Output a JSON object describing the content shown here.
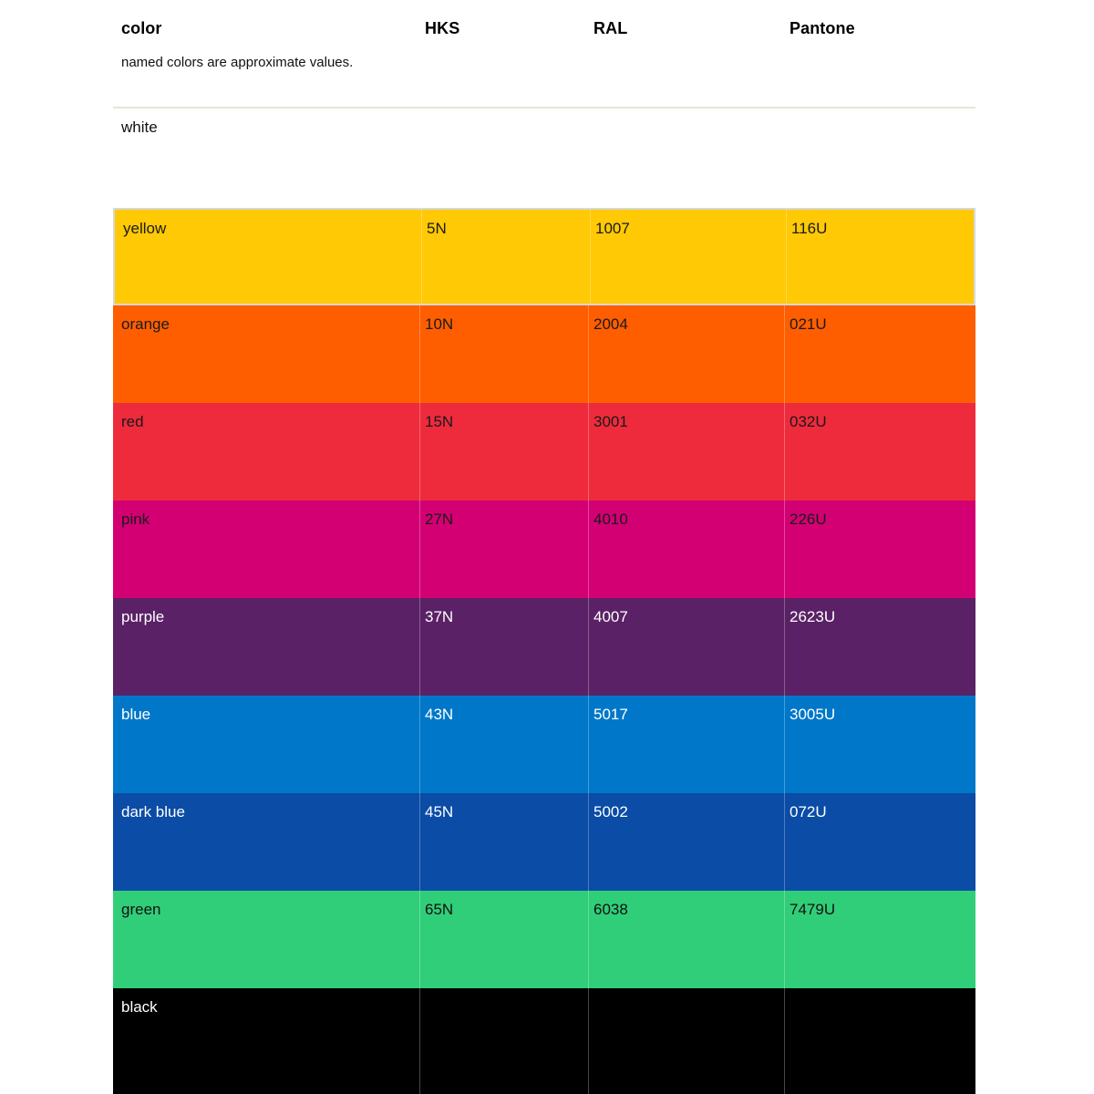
{
  "header": {
    "columns": [
      "color",
      "HKS",
      "RAL",
      "Pantone"
    ],
    "note": "named colors are approximate values."
  },
  "table": {
    "rows": [
      {
        "name": "white",
        "hks": "",
        "ral": "",
        "pantone": "",
        "bg": "#ffffff",
        "text_color": "#111111"
      },
      {
        "name": "yellow",
        "hks": "5N",
        "ral": "1007",
        "pantone": "116U",
        "bg": "#ffc905",
        "text_color": "#1a1a1a"
      },
      {
        "name": "orange",
        "hks": "10N",
        "ral": "2004",
        "pantone": "021U",
        "bg": "#fe5e00",
        "text_color": "#1a1a1a"
      },
      {
        "name": "red",
        "hks": "15N",
        "ral": "3001",
        "pantone": "032U",
        "bg": "#ee2b3c",
        "text_color": "#1a1a1a"
      },
      {
        "name": "pink",
        "hks": "27N",
        "ral": "4010",
        "pantone": "226U",
        "bg": "#d30074",
        "text_color": "#1a1a1a"
      },
      {
        "name": "purple",
        "hks": "37N",
        "ral": "4007",
        "pantone": "2623U",
        "bg": "#5a2166",
        "text_color": "#ffffff"
      },
      {
        "name": "blue",
        "hks": "43N",
        "ral": "5017",
        "pantone": "3005U",
        "bg": "#0077c8",
        "text_color": "#ffffff"
      },
      {
        "name": "dark blue",
        "hks": "45N",
        "ral": "5002",
        "pantone": "072U",
        "bg": "#0a4ca6",
        "text_color": "#ffffff"
      },
      {
        "name": "green",
        "hks": "65N",
        "ral": "6038",
        "pantone": "7479U",
        "bg": "#30ce78",
        "text_color": "#111111"
      },
      {
        "name": "black",
        "hks": "",
        "ral": "",
        "pantone": "",
        "bg": "#000000",
        "text_color": "#ffffff"
      }
    ]
  }
}
